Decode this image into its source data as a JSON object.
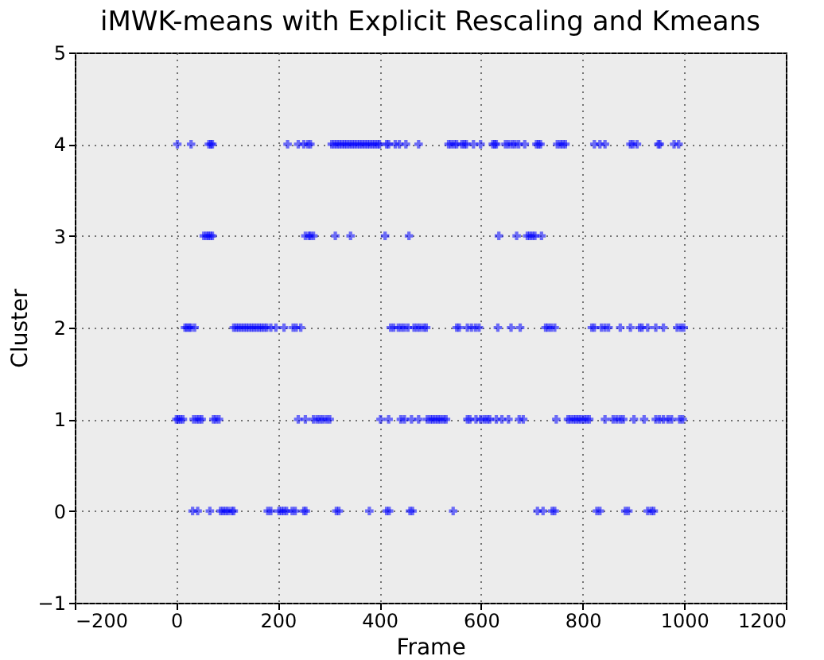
{
  "chart_data": {
    "type": "scatter",
    "title": "iMWK-means with Explicit Rescaling and Kmeans",
    "xlabel": "Frame",
    "ylabel": "Cluster",
    "xlim": [
      -200,
      1200
    ],
    "xticks": [
      -200,
      0,
      200,
      400,
      600,
      800,
      1000,
      1200
    ],
    "ylim": [
      -1,
      5
    ],
    "yticks": [
      -1,
      0,
      1,
      2,
      3,
      4,
      5
    ],
    "grid": true,
    "marker": "cross",
    "legend": false,
    "series": [
      {
        "color": "#0000ff",
        "x": [
          2,
          29,
          64,
          68,
          71,
          219,
          240,
          251,
          259,
          264,
          306,
          311,
          316,
          321,
          326,
          331,
          336,
          341,
          346,
          351,
          356,
          361,
          366,
          371,
          376,
          381,
          386,
          391,
          396,
          400,
          414,
          418,
          431,
          439,
          452,
          477,
          536,
          541,
          547,
          552,
          562,
          567,
          571,
          585,
          599,
          623,
          627,
          630,
          648,
          654,
          661,
          667,
          674,
          686,
          709,
          713,
          717,
          750,
          756,
          761,
          766,
          823,
          834,
          844,
          894,
          899,
          907,
          949,
          952,
          980,
          989,
          54,
          59,
          63,
          67,
          71,
          254,
          261,
          264,
          270,
          313,
          343,
          411,
          458,
          635,
          670,
          691,
          696,
          701,
          706,
          719,
          17,
          21,
          25,
          29,
          36,
          113,
          118,
          123,
          128,
          133,
          138,
          143,
          148,
          153,
          158,
          163,
          168,
          173,
          178,
          186,
          196,
          212,
          230,
          236,
          245,
          422,
          428,
          437,
          443,
          449,
          456,
          468,
          474,
          480,
          487,
          492,
          552,
          557,
          573,
          581,
          589,
          596,
          633,
          659,
          677,
          727,
          732,
          738,
          745,
          818,
          823,
          837,
          844,
          851,
          874,
          894,
          912,
          917,
          928,
          944,
          959,
          986,
          993,
          999,
          0,
          4,
          8,
          13,
          34,
          40,
          45,
          50,
          73,
          78,
          84,
          240,
          254,
          270,
          277,
          283,
          289,
          296,
          302,
          402,
          418,
          442,
          449,
          463,
          477,
          494,
          500,
          505,
          510,
          515,
          520,
          526,
          531,
          573,
          578,
          590,
          599,
          606,
          612,
          617,
          630,
          641,
          654,
          675,
          683,
          748,
          771,
          776,
          782,
          787,
          792,
          797,
          803,
          808,
          813,
          844,
          860,
          867,
          874,
          880,
          901,
          921,
          944,
          951,
          959,
          968,
          975,
          991,
          997,
          32,
          42,
          66,
          87,
          92,
          97,
          102,
          109,
          113,
          180,
          186,
          202,
          207,
          212,
          217,
          228,
          234,
          251,
          255,
          315,
          320,
          380,
          414,
          419,
          460,
          465,
          545,
          711,
          722,
          740,
          745,
          828,
          834,
          884,
          890,
          928,
          935,
          940
        ],
        "values": [
          4,
          4,
          4,
          4,
          4,
          4,
          4,
          4,
          4,
          4,
          4,
          4,
          4,
          4,
          4,
          4,
          4,
          4,
          4,
          4,
          4,
          4,
          4,
          4,
          4,
          4,
          4,
          4,
          4,
          4,
          4,
          4,
          4,
          4,
          4,
          4,
          4,
          4,
          4,
          4,
          4,
          4,
          4,
          4,
          4,
          4,
          4,
          4,
          4,
          4,
          4,
          4,
          4,
          4,
          4,
          4,
          4,
          4,
          4,
          4,
          4,
          4,
          4,
          4,
          4,
          4,
          4,
          4,
          4,
          4,
          4,
          3,
          3,
          3,
          3,
          3,
          3,
          3,
          3,
          3,
          3,
          3,
          3,
          3,
          3,
          3,
          3,
          3,
          3,
          3,
          3,
          2,
          2,
          2,
          2,
          2,
          2,
          2,
          2,
          2,
          2,
          2,
          2,
          2,
          2,
          2,
          2,
          2,
          2,
          2,
          2,
          2,
          2,
          2,
          2,
          2,
          2,
          2,
          2,
          2,
          2,
          2,
          2,
          2,
          2,
          2,
          2,
          2,
          2,
          2,
          2,
          2,
          2,
          2,
          2,
          2,
          2,
          2,
          2,
          2,
          2,
          2,
          2,
          2,
          2,
          2,
          2,
          2,
          2,
          2,
          2,
          2,
          2,
          2,
          2,
          1,
          1,
          1,
          1,
          1,
          1,
          1,
          1,
          1,
          1,
          1,
          1,
          1,
          1,
          1,
          1,
          1,
          1,
          1,
          1,
          1,
          1,
          1,
          1,
          1,
          1,
          1,
          1,
          1,
          1,
          1,
          1,
          1,
          1,
          1,
          1,
          1,
          1,
          1,
          1,
          1,
          1,
          1,
          1,
          1,
          1,
          1,
          1,
          1,
          1,
          1,
          1,
          1,
          1,
          1,
          1,
          1,
          1,
          1,
          1,
          1,
          1,
          1,
          1,
          1,
          1,
          1,
          1,
          1,
          0,
          0,
          0,
          0,
          0,
          0,
          0,
          0,
          0,
          0,
          0,
          0,
          0,
          0,
          0,
          0,
          0,
          0,
          0,
          0,
          0,
          0,
          0,
          0,
          0,
          0,
          0,
          0,
          0,
          0,
          0,
          0,
          0,
          0,
          0,
          0,
          0,
          0
        ]
      }
    ]
  }
}
